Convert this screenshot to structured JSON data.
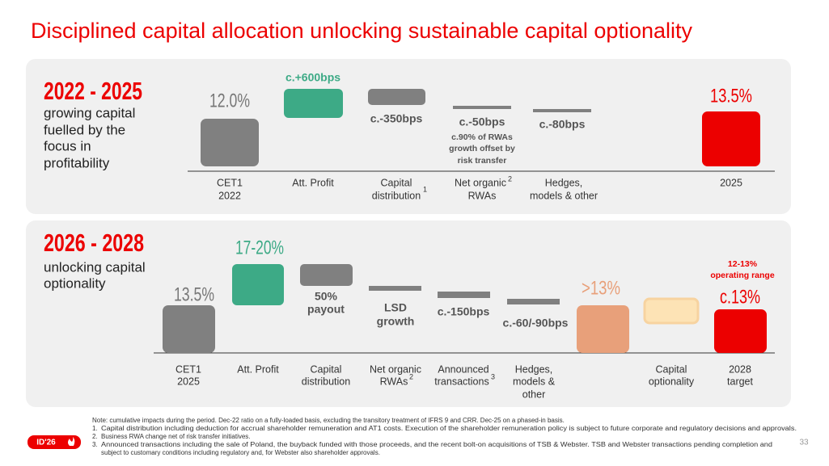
{
  "title": "Disciplined capital allocation unlocking sustainable capital optionality",
  "panels": [
    {
      "heading": "2022 - 2025",
      "subtitle": [
        "growing capital",
        "fuelled by the",
        "focus in",
        "profitability"
      ],
      "steps": [
        {
          "value": "12.0%",
          "label": [
            "CET1",
            "2022"
          ]
        },
        {
          "value": "c.+600bps",
          "label": [
            "Att. Profit"
          ]
        },
        {
          "value": "c.-350bps",
          "label": [
            "Capital",
            "distribution"
          ],
          "note": "1"
        },
        {
          "value": "c.-50bps",
          "detail": [
            "c.90% of RWAs",
            "growth offset by",
            "risk transfer"
          ],
          "label": [
            "Net organic",
            "RWAs"
          ],
          "note": "2"
        },
        {
          "value": "c.-80bps",
          "label": [
            "Hedges,",
            "models & other"
          ]
        },
        {
          "value": "13.5%",
          "label": [
            "2025"
          ]
        }
      ]
    },
    {
      "heading": "2026 - 2028",
      "subtitle": [
        "unlocking capital",
        "optionality"
      ],
      "steps": [
        {
          "value": "13.5%",
          "label": [
            "CET1",
            "2025"
          ]
        },
        {
          "value": "17-20%",
          "label": [
            "Att. Profit"
          ]
        },
        {
          "value": [
            "50%",
            "payout"
          ],
          "label": [
            "Capital",
            "distribution"
          ]
        },
        {
          "value": [
            "LSD",
            "growth"
          ],
          "label": [
            "Net organic",
            "RWAs"
          ],
          "note": "2"
        },
        {
          "value": "c.-150bps",
          "label": [
            "Announced",
            "transactions"
          ],
          "note": "3"
        },
        {
          "value": "c.-60/-90bps",
          "label": [
            "Hedges,",
            "models &",
            "other"
          ]
        },
        {
          "value": ">13%"
        },
        {
          "label": [
            "Capital",
            "optionality"
          ]
        },
        {
          "value": "c.13%",
          "detail": [
            "12-13%",
            "operating range"
          ],
          "label": [
            "2028",
            "target"
          ]
        }
      ]
    }
  ],
  "footnotes": {
    "intro": "Note: cumulative impacts during the period. Dec-22 ratio on a fully-loaded basis, excluding the transitory treatment of IFRS 9 and CRR. Dec-25 on a phased-in basis.",
    "items": [
      {
        "marker": "1.",
        "text": [
          "Capital distribution including deduction for accrual shareholder remuneration and AT1 costs. Execution of the shareholder remuneration policy is subject to future corporate and regulatory decisions and approvals."
        ]
      },
      {
        "marker": "2.",
        "text": [
          "Business RWA change net of risk transfer initiatives."
        ]
      },
      {
        "marker": "3.",
        "text": [
          "Announced transactions including the sale of Poland, the buyback funded with those proceeds, and the recent bolt-on acquisitions of TSB & Webster. TSB and Webster transactions pending completion and",
          "subject to customary conditions including regulatory and, for Webster also shareholder approvals."
        ]
      }
    ]
  },
  "logo": "ID'26",
  "page_number": "33"
}
